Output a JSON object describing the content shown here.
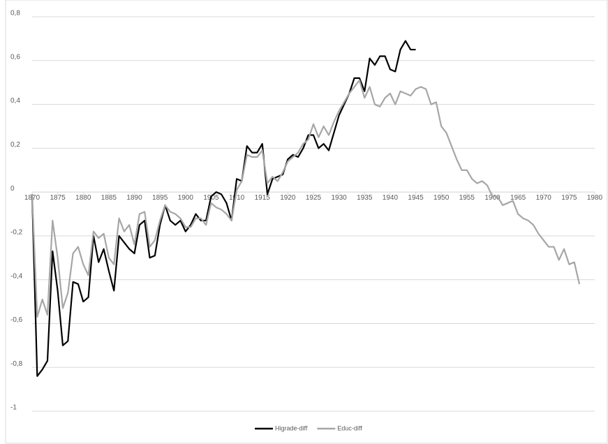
{
  "chart_data": {
    "type": "line",
    "x": [
      1870,
      1871,
      1872,
      1873,
      1874,
      1875,
      1876,
      1877,
      1878,
      1879,
      1880,
      1881,
      1882,
      1883,
      1884,
      1885,
      1886,
      1887,
      1888,
      1889,
      1890,
      1891,
      1892,
      1893,
      1894,
      1895,
      1896,
      1897,
      1898,
      1899,
      1900,
      1901,
      1902,
      1903,
      1904,
      1905,
      1906,
      1907,
      1908,
      1909,
      1910,
      1911,
      1912,
      1913,
      1914,
      1915,
      1916,
      1917,
      1918,
      1919,
      1920,
      1921,
      1922,
      1923,
      1924,
      1925,
      1926,
      1927,
      1928,
      1929,
      1930,
      1931,
      1932,
      1933,
      1934,
      1935,
      1936,
      1937,
      1938,
      1939,
      1940,
      1941,
      1942,
      1943,
      1944,
      1945,
      1946,
      1947,
      1948,
      1949,
      1950,
      1951,
      1952,
      1953,
      1954,
      1955,
      1956,
      1957,
      1958,
      1959,
      1960,
      1961,
      1962,
      1963,
      1964,
      1965,
      1966,
      1967,
      1968,
      1969,
      1970,
      1971,
      1972,
      1973,
      1974,
      1975,
      1976,
      1977
    ],
    "series": [
      {
        "name": "Higrade-diff",
        "color": "#000000",
        "values": [
          -0.01,
          -0.84,
          -0.81,
          -0.77,
          -0.27,
          -0.45,
          -0.7,
          -0.68,
          -0.41,
          -0.42,
          -0.5,
          -0.48,
          -0.2,
          -0.32,
          -0.26,
          -0.36,
          -0.45,
          -0.2,
          -0.23,
          -0.26,
          -0.28,
          -0.15,
          -0.13,
          -0.3,
          -0.29,
          -0.15,
          -0.06,
          -0.13,
          -0.15,
          -0.13,
          -0.18,
          -0.15,
          -0.1,
          -0.13,
          -0.13,
          -0.02,
          0.0,
          -0.01,
          -0.05,
          -0.13,
          0.06,
          0.05,
          0.21,
          0.18,
          0.18,
          0.22,
          -0.01,
          0.06,
          0.07,
          0.08,
          0.15,
          0.17,
          0.16,
          0.2,
          0.26,
          0.26,
          0.2,
          0.22,
          0.19,
          0.27,
          0.35,
          0.4,
          0.45,
          0.52,
          0.52,
          0.46,
          0.61,
          0.58,
          0.62,
          0.62,
          0.56,
          0.55,
          0.65,
          0.69,
          0.65,
          0.65,
          null,
          null,
          null,
          null,
          null,
          null,
          null,
          null,
          null,
          null,
          null,
          null,
          null,
          null,
          null,
          null,
          null,
          null,
          null,
          null,
          null,
          null,
          null,
          null,
          null,
          null,
          null,
          null,
          null,
          null,
          null,
          null
        ]
      },
      {
        "name": "Educ-diff",
        "color": "#a6a6a6",
        "values": [
          -0.01,
          -0.57,
          -0.49,
          -0.56,
          -0.13,
          -0.3,
          -0.53,
          -0.46,
          -0.28,
          -0.25,
          -0.33,
          -0.38,
          -0.18,
          -0.21,
          -0.19,
          -0.3,
          -0.33,
          -0.12,
          -0.18,
          -0.15,
          -0.24,
          -0.1,
          -0.09,
          -0.25,
          -0.22,
          -0.13,
          -0.06,
          -0.09,
          -0.1,
          -0.12,
          -0.16,
          -0.16,
          -0.12,
          -0.12,
          -0.15,
          -0.05,
          -0.07,
          -0.08,
          -0.1,
          -0.13,
          0.01,
          0.05,
          0.17,
          0.16,
          0.16,
          0.19,
          0.04,
          0.07,
          0.05,
          0.09,
          0.14,
          0.16,
          0.18,
          0.22,
          0.24,
          0.31,
          0.25,
          0.3,
          0.26,
          0.32,
          0.37,
          0.41,
          0.45,
          0.48,
          0.51,
          0.43,
          0.48,
          0.4,
          0.39,
          0.43,
          0.45,
          0.4,
          0.46,
          0.45,
          0.44,
          0.47,
          0.48,
          0.47,
          0.4,
          0.41,
          0.3,
          0.27,
          0.21,
          0.15,
          0.1,
          0.1,
          0.06,
          0.04,
          0.05,
          0.03,
          -0.02,
          -0.02,
          -0.06,
          -0.05,
          -0.04,
          -0.1,
          -0.12,
          -0.13,
          -0.15,
          -0.19,
          -0.22,
          -0.25,
          -0.25,
          -0.31,
          -0.26,
          -0.33,
          -0.32,
          -0.42
        ]
      }
    ],
    "xlim": [
      1870,
      1980
    ],
    "xticks": [
      1870,
      1875,
      1880,
      1885,
      1890,
      1895,
      1900,
      1905,
      1910,
      1915,
      1920,
      1925,
      1930,
      1935,
      1940,
      1945,
      1950,
      1955,
      1960,
      1965,
      1970,
      1975,
      1980
    ],
    "ylim": [
      -1,
      0.8
    ],
    "yticks": [
      -1,
      {
        "value": -0.8,
        "label": "-0,8"
      },
      {
        "value": -0.6,
        "label": "-0,6"
      },
      {
        "value": -0.4,
        "label": "-0,4"
      },
      {
        "value": -0.2,
        "label": "-0,2"
      },
      0,
      {
        "value": 0.2,
        "label": "0,2"
      },
      {
        "value": 0.4,
        "label": "0,4"
      },
      {
        "value": 0.6,
        "label": "0,6"
      },
      {
        "value": 0.8,
        "label": "0,8"
      }
    ],
    "grid": true,
    "legend": "bottom"
  }
}
